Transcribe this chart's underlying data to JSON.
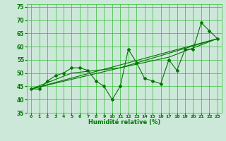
{
  "title": "",
  "xlabel": "Humidité relative (%)",
  "ylabel": "",
  "bg_color": "#cce8d8",
  "grid_color": "#33bb33",
  "line_color": "#007700",
  "marker_color": "#007700",
  "xlim": [
    -0.5,
    23.5
  ],
  "ylim": [
    35,
    76
  ],
  "yticks": [
    35,
    40,
    45,
    50,
    55,
    60,
    65,
    70,
    75
  ],
  "xticks": [
    0,
    1,
    2,
    3,
    4,
    5,
    6,
    7,
    8,
    9,
    10,
    11,
    12,
    13,
    14,
    15,
    16,
    17,
    18,
    19,
    20,
    21,
    22,
    23
  ],
  "series": [
    {
      "x": [
        0,
        1,
        2,
        3,
        4,
        5,
        6,
        7,
        8,
        9,
        10,
        11,
        12,
        13,
        14,
        15,
        16,
        17,
        18,
        19,
        20,
        21,
        22,
        23
      ],
      "y": [
        44,
        44,
        47,
        49,
        50,
        52,
        52,
        51,
        47,
        45,
        40,
        45,
        59,
        54,
        48,
        47,
        46,
        55,
        51,
        59,
        59,
        69,
        66,
        63
      ]
    },
    {
      "x": [
        0,
        23
      ],
      "y": [
        44,
        63
      ]
    },
    {
      "x": [
        0,
        11,
        23
      ],
      "y": [
        44,
        52,
        63
      ]
    },
    {
      "x": [
        0,
        5,
        11,
        17,
        23
      ],
      "y": [
        44,
        50,
        52,
        56,
        63
      ]
    }
  ]
}
